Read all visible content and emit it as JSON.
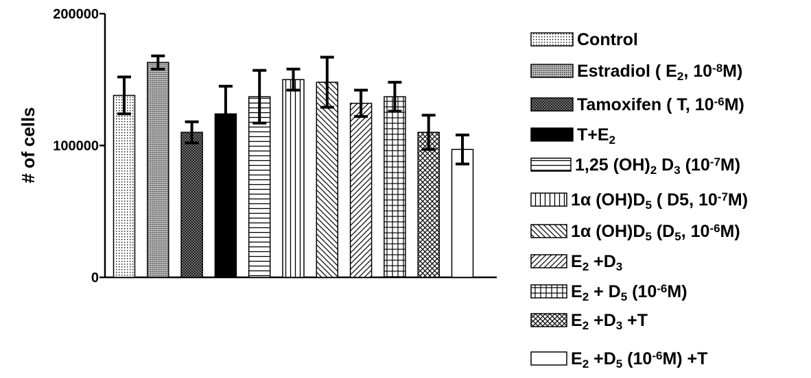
{
  "chart_data": {
    "type": "bar",
    "ylabel": "# of cells",
    "xlabel": "",
    "ylim": [
      0,
      200000
    ],
    "yticks": [
      "0",
      "100000",
      "200000"
    ],
    "grid": false,
    "legend_position": "right",
    "series": [
      {
        "name": "Control",
        "pattern": "dots",
        "value": 138000,
        "error": 14000
      },
      {
        "name": "Estradiol ( E2, 10-8M)",
        "pattern": "dense-dots",
        "value": 163000,
        "error": 5000
      },
      {
        "name": "Tamoxifen ( T, 10-6M)",
        "pattern": "crosshatch-dense",
        "value": 110000,
        "error": 8000
      },
      {
        "name": "T+E2",
        "pattern": "solid",
        "value": 124000,
        "error": 21000
      },
      {
        "name": "1,25 (OH)2 D3 (10-7M)",
        "pattern": "horizontal",
        "value": 137000,
        "error": 20000
      },
      {
        "name": "1α (OH)D5 ( D5, 10-7M)",
        "pattern": "vertical",
        "value": 150000,
        "error": 8000
      },
      {
        "name": "1α (OH)D5 (D5, 10-6M)",
        "pattern": "diag-back",
        "value": 148000,
        "error": 19000
      },
      {
        "name": "E2 +D3",
        "pattern": "diag-fwd",
        "value": 132000,
        "error": 10000
      },
      {
        "name": "E2 + D5 (10-6M)",
        "pattern": "grid",
        "value": 137000,
        "error": 11000
      },
      {
        "name": "E2 +D3 +T",
        "pattern": "diamond",
        "value": 110000,
        "error": 13000
      },
      {
        "name": "E2 +D5 (10-6M) +T",
        "pattern": "none",
        "value": 97000,
        "error": 11000
      }
    ],
    "legend": [
      [
        {
          "t": "Control"
        }
      ],
      [
        {
          "t": "Estradiol ( E"
        },
        {
          "t": "2",
          "s": "sub"
        },
        {
          "t": ", 10"
        },
        {
          "t": "-8",
          "s": "sup"
        },
        {
          "t": "M)"
        }
      ],
      [
        {
          "t": "Tamoxifen ( T, 10"
        },
        {
          "t": "-6",
          "s": "sup"
        },
        {
          "t": "M)"
        }
      ],
      [
        {
          "t": "T+E"
        },
        {
          "t": "2",
          "s": "sub"
        }
      ],
      [
        {
          "t": "1,25 (OH)"
        },
        {
          "t": "2",
          "s": "sub"
        },
        {
          "t": " D"
        },
        {
          "t": "3",
          "s": "sub"
        },
        {
          "t": " (10"
        },
        {
          "t": "-7",
          "s": "sup"
        },
        {
          "t": "M)"
        }
      ],
      [
        {
          "t": "1α (OH)D"
        },
        {
          "t": "5",
          "s": "sub"
        },
        {
          "t": " ( D5, 10"
        },
        {
          "t": "-7",
          "s": "sup"
        },
        {
          "t": "M)"
        }
      ],
      [
        {
          "t": "1α (OH)D"
        },
        {
          "t": "5",
          "s": "sub"
        },
        {
          "t": " (D"
        },
        {
          "t": "5",
          "s": "sub"
        },
        {
          "t": ", 10"
        },
        {
          "t": "-6",
          "s": "sup"
        },
        {
          "t": "M)"
        }
      ],
      [
        {
          "t": "E"
        },
        {
          "t": "2",
          "s": "sub"
        },
        {
          "t": " +D"
        },
        {
          "t": "3",
          "s": "sub"
        }
      ],
      [
        {
          "t": "E"
        },
        {
          "t": "2",
          "s": "sub"
        },
        {
          "t": " + D"
        },
        {
          "t": "5",
          "s": "sub"
        },
        {
          "t": " (10"
        },
        {
          "t": "-6",
          "s": "sup"
        },
        {
          "t": "M)"
        }
      ],
      [
        {
          "t": "E"
        },
        {
          "t": "2",
          "s": "sub"
        },
        {
          "t": " +D"
        },
        {
          "t": "3",
          "s": "sub"
        },
        {
          "t": " +T"
        }
      ],
      [
        {
          "t": "E"
        },
        {
          "t": "2",
          "s": "sub"
        },
        {
          "t": " +D"
        },
        {
          "t": "5",
          "s": "sub"
        },
        {
          "t": " (10"
        },
        {
          "t": "-6",
          "s": "sup"
        },
        {
          "t": "M) +T"
        }
      ]
    ]
  }
}
